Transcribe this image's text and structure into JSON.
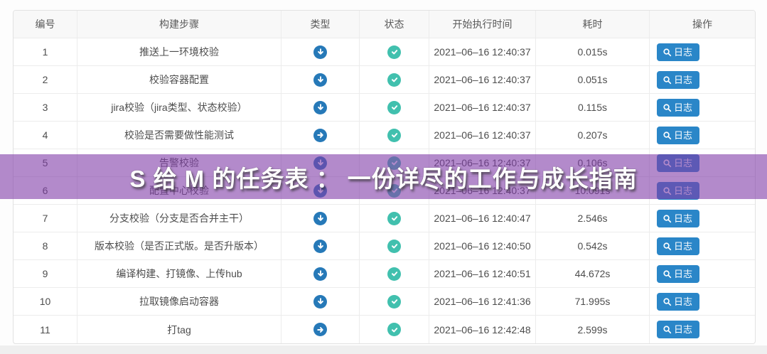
{
  "overlay": {
    "title": "S 给 M 的任务表 ： 一份详尽的工作与成长指南"
  },
  "table": {
    "headers": [
      "编号",
      "构建步骤",
      "类型",
      "状态",
      "开始执行时间",
      "耗时",
      "操作"
    ],
    "log_button_label": "日志",
    "rows": [
      {
        "no": "1",
        "step": "推送上一环境校验",
        "type": "down-arrow",
        "status": "success",
        "start": "2021–06–16 12:40:37",
        "duration": "0.015s"
      },
      {
        "no": "2",
        "step": "校验容器配置",
        "type": "down-arrow",
        "status": "success",
        "start": "2021–06–16 12:40:37",
        "duration": "0.051s"
      },
      {
        "no": "3",
        "step": "jira校验（jira类型、状态校验）",
        "type": "down-arrow",
        "status": "success",
        "start": "2021–06–16 12:40:37",
        "duration": "0.115s"
      },
      {
        "no": "4",
        "step": "校验是否需要做性能测试",
        "type": "right-arrow",
        "status": "success",
        "start": "2021–06–16 12:40:37",
        "duration": "0.207s"
      },
      {
        "no": "5",
        "step": "告警校验",
        "type": "down-arrow",
        "status": "success",
        "start": "2021–06–16 12:40:37",
        "duration": "0.106s"
      },
      {
        "no": "6",
        "step": "配置中心校验",
        "type": "down-arrow",
        "status": "success",
        "start": "2021–06–16 12:40:37",
        "duration": "10.091s"
      },
      {
        "no": "7",
        "step": "分支校验（分支是否合并主干）",
        "type": "down-arrow",
        "status": "success",
        "start": "2021–06–16 12:40:47",
        "duration": "2.546s"
      },
      {
        "no": "8",
        "step": "版本校验（是否正式版。是否升版本）",
        "type": "down-arrow",
        "status": "success",
        "start": "2021–06–16 12:40:50",
        "duration": "0.542s"
      },
      {
        "no": "9",
        "step": "编译构建、打镜像、上传hub",
        "type": "down-arrow",
        "status": "success",
        "start": "2021–06–16 12:40:51",
        "duration": "44.672s"
      },
      {
        "no": "10",
        "step": "拉取镜像启动容器",
        "type": "down-arrow",
        "status": "success",
        "start": "2021–06–16 12:41:36",
        "duration": "71.995s"
      },
      {
        "no": "11",
        "step": "打tag",
        "type": "right-arrow",
        "status": "success",
        "start": "2021–06–16 12:42:48",
        "duration": "2.599s"
      }
    ]
  },
  "colors": {
    "type_icon_blue": "#2679b8",
    "status_success_teal": "#41c0ae",
    "log_button_blue": "#2a86c8",
    "overlay_purple": "rgba(128,60,168,0.6)"
  }
}
